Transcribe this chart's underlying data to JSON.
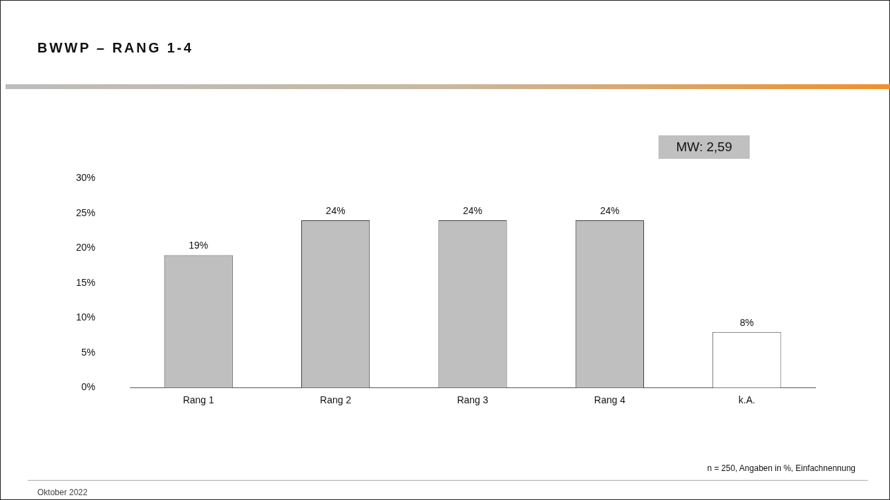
{
  "chart_data": {
    "type": "bar",
    "title": "BWWP – RANG 1-4",
    "categories": [
      "Rang 1",
      "Rang 2",
      "Rang 3",
      "Rang 4",
      "k.A."
    ],
    "values": [
      19,
      24,
      24,
      24,
      8
    ],
    "colors": [
      "#bfbfbf",
      "#bfbfbf",
      "#bfbfbf",
      "#bfbfbf",
      "#ffffff"
    ],
    "value_labels": [
      "19%",
      "24%",
      "24%",
      "24%",
      "8%"
    ],
    "ylim": [
      0,
      30
    ],
    "yticks": [
      {
        "value": 0,
        "label": "0%"
      },
      {
        "value": 5,
        "label": "5%"
      },
      {
        "value": 10,
        "label": "10%"
      },
      {
        "value": 15,
        "label": "15%"
      },
      {
        "value": 20,
        "label": "20%"
      },
      {
        "value": 25,
        "label": "25%"
      },
      {
        "value": 30,
        "label": "30%"
      }
    ],
    "grid": false,
    "legend": false,
    "annotations": [
      "MW: 2,59",
      "n = 250, Angaben in %, Einfachnennung",
      "Oktober 2022"
    ]
  }
}
